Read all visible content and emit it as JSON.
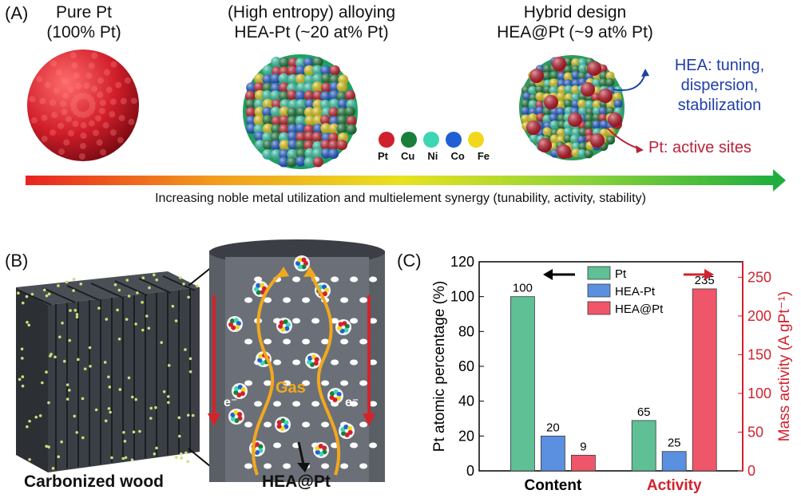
{
  "panel_a": {
    "label": "(A)",
    "col1": {
      "line1": "Pure Pt",
      "line2": "(100% Pt)"
    },
    "col2": {
      "line1": "(High entropy) alloying",
      "line2": "HEA-Pt (~20 at% Pt)"
    },
    "col3": {
      "line1": "Hybrid design",
      "line2": "HEA@Pt (~9 at% Pt)"
    },
    "hea_note": {
      "line1": "HEA: tuning,",
      "line2": "dispersion,",
      "line3": "stabilization"
    },
    "pt_note": "Pt: active sites",
    "metals": [
      {
        "name": "Pt",
        "color": "#d0202e"
      },
      {
        "name": "Cu",
        "color": "#1a7f3a"
      },
      {
        "name": "Ni",
        "color": "#3dd6b3"
      },
      {
        "name": "Co",
        "color": "#1f5fd6"
      },
      {
        "name": "Fe",
        "color": "#f1d81c"
      }
    ],
    "gradient_caption": "Increasing noble metal utilization and multielement synergy (tunability, activity, stability)"
  },
  "panel_b": {
    "label": "(B)",
    "wood_label": "Carbonized wood",
    "channel_label": "HEA@Pt",
    "gas_label": "Gas",
    "electron_label": "e⁻"
  },
  "panel_c": {
    "label": "(C)"
  },
  "chart_data": {
    "type": "bar",
    "categories": [
      "Content",
      "Activity"
    ],
    "series": [
      {
        "name": "Pt",
        "values": [
          100,
          65
        ],
        "color": "#5fbf95"
      },
      {
        "name": "HEA-Pt",
        "values": [
          20,
          25
        ],
        "color": "#5b8fe0"
      },
      {
        "name": "HEA@Pt",
        "values": [
          9,
          235
        ],
        "color": "#f0566a"
      }
    ],
    "value_labels": [
      [
        "100",
        "20",
        "9"
      ],
      [
        "65",
        "25",
        "235"
      ]
    ],
    "ylabel_left": "Pt atomic percentage (%)",
    "ylabel_right": "Mass activity (A gPt⁻¹)",
    "ylim_left": [
      0,
      120
    ],
    "ylim_right": [
      0,
      270
    ],
    "yticks_left": [
      "0",
      "20",
      "40",
      "60",
      "80",
      "100",
      "120"
    ],
    "yticks_right": [
      "0",
      "50",
      "100",
      "150",
      "200",
      "250"
    ],
    "axis_note": "Content uses left axis; Activity uses right axis",
    "legend_placement": "top-center"
  }
}
